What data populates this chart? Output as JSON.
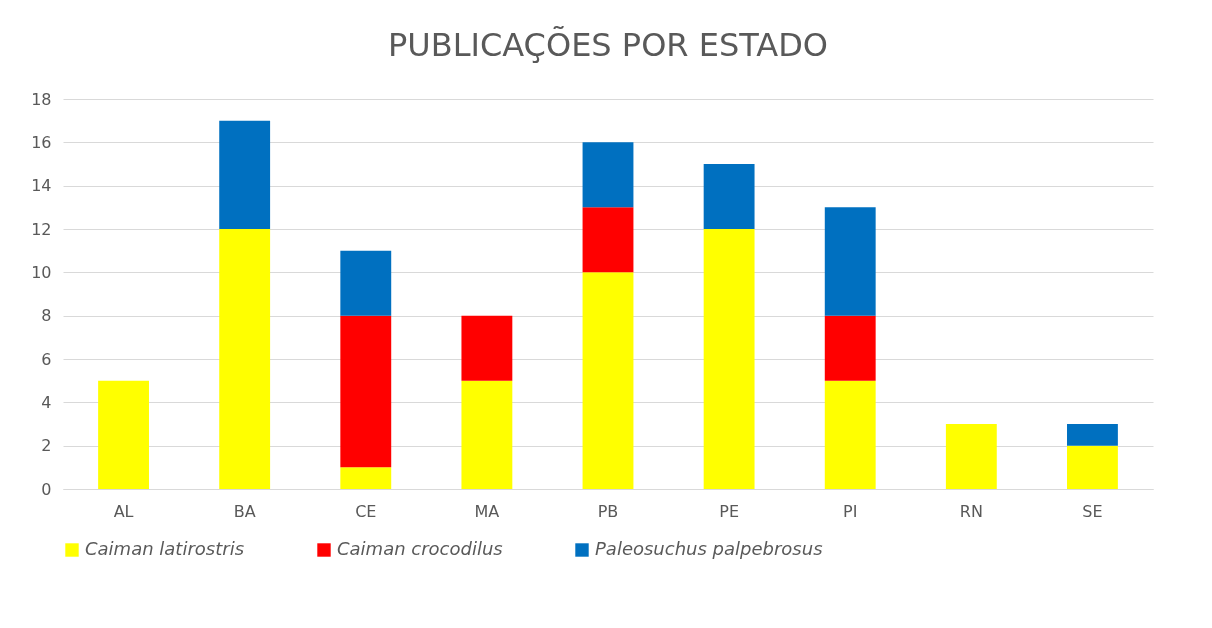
{
  "chart_data": {
    "type": "bar",
    "title": "PUBLICAÇÕES POR ESTADO",
    "stacked": true,
    "categories": [
      "AL",
      "BA",
      "CE",
      "MA",
      "PB",
      "PE",
      "PI",
      "RN",
      "SE"
    ],
    "series": [
      {
        "name": "Caiman latirostris",
        "color": "#ffff00",
        "values": [
          5,
          12,
          1,
          5,
          10,
          12,
          5,
          3,
          2
        ]
      },
      {
        "name": "Caiman crocodilus",
        "color": "#ff0000",
        "values": [
          0,
          0,
          7,
          3,
          3,
          0,
          3,
          0,
          0
        ]
      },
      {
        "name": "Paleosuchus palpebrosus",
        "color": "#0070c0",
        "values": [
          0,
          5,
          3,
          0,
          3,
          3,
          5,
          0,
          1
        ]
      }
    ],
    "ylim": [
      0,
      18
    ],
    "yticks": [
      0,
      2,
      4,
      6,
      8,
      10,
      12,
      14,
      16,
      18
    ],
    "grid": "y",
    "legend": "bottom"
  }
}
